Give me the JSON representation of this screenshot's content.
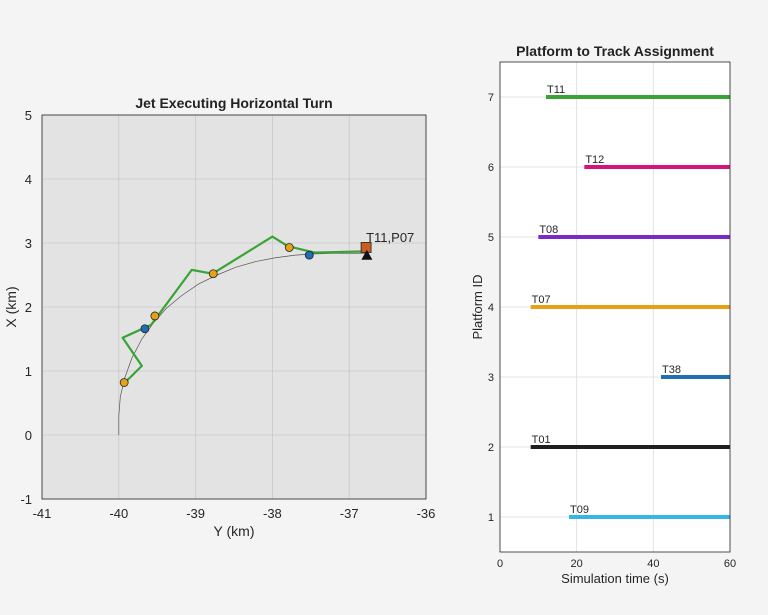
{
  "chart_data": [
    {
      "type": "line",
      "title": "Jet Executing Horizontal Turn",
      "xlabel": "Y (km)",
      "ylabel": "X (km)",
      "xlim": [
        -41,
        -36
      ],
      "ylim": [
        -1,
        5
      ],
      "x_ticks": [
        "-41",
        "-40",
        "-39",
        "-38",
        "-37",
        "-36"
      ],
      "y_ticks": [
        "-1",
        "0",
        "1",
        "2",
        "3",
        "4",
        "5"
      ],
      "grid": true,
      "background_color": "#e3e3e3",
      "annotations": [
        {
          "text": "T11,P07",
          "x": -36.78,
          "y": 3.0
        }
      ],
      "series": [
        {
          "role": "truth trajectory",
          "color": "#555555",
          "x": [
            -40.0,
            -40.0,
            -39.98,
            -39.92,
            -39.83,
            -39.7,
            -39.55,
            -39.38,
            -39.18,
            -38.96,
            -38.72,
            -38.48,
            -38.22,
            -37.96,
            -37.7,
            -37.45,
            -37.2,
            -36.95,
            -36.78
          ],
          "y": [
            0.0,
            0.3,
            0.6,
            0.9,
            1.2,
            1.5,
            1.75,
            1.98,
            2.18,
            2.36,
            2.5,
            2.62,
            2.71,
            2.77,
            2.81,
            2.83,
            2.84,
            2.84,
            2.84
          ]
        },
        {
          "role": "track estimate",
          "color": "#3aa335",
          "x": [
            -39.92,
            -39.7,
            -39.95,
            -39.58,
            -39.05,
            -38.78,
            -38.0,
            -37.8,
            -37.45,
            -36.78
          ],
          "y": [
            0.82,
            1.08,
            1.52,
            1.72,
            2.58,
            2.52,
            3.1,
            2.95,
            2.85,
            2.87
          ]
        }
      ],
      "detections": [
        {
          "x": -39.93,
          "y": 0.82,
          "color": "#e6a117"
        },
        {
          "x": -39.66,
          "y": 1.66,
          "color": "#1f6fb5"
        },
        {
          "x": -39.53,
          "y": 1.86,
          "color": "#e6a117"
        },
        {
          "x": -38.77,
          "y": 2.52,
          "color": "#e6a117"
        },
        {
          "x": -37.78,
          "y": 2.93,
          "color": "#e6a117"
        },
        {
          "x": -37.52,
          "y": 2.81,
          "color": "#1f6fb5"
        }
      ],
      "markers": [
        {
          "shape": "square",
          "x": -36.78,
          "y": 2.93,
          "color": "#c85f1e"
        },
        {
          "shape": "triangle",
          "x": -36.77,
          "y": 2.8,
          "color": "#111111"
        }
      ]
    },
    {
      "type": "line",
      "title": "Platform to Track Assignment",
      "xlabel": "Simulation time (s)",
      "ylabel": "Platform ID",
      "xlim": [
        0,
        60
      ],
      "ylim": [
        0.5,
        7.5
      ],
      "x_ticks": [
        "0",
        "20",
        "40",
        "60"
      ],
      "y_ticks": [
        "1",
        "2",
        "3",
        "4",
        "5",
        "6",
        "7"
      ],
      "grid": true,
      "background_color": "#ffffff",
      "series": [
        {
          "name": "T09",
          "platform": 1,
          "x": [
            18,
            60
          ],
          "color": "#36b6e8"
        },
        {
          "name": "T01",
          "platform": 2,
          "x": [
            8,
            60
          ],
          "color": "#1f1f1f"
        },
        {
          "name": "T38",
          "platform": 3,
          "x": [
            42,
            60
          ],
          "color": "#1f6fb5"
        },
        {
          "name": "T07",
          "platform": 4,
          "x": [
            8,
            60
          ],
          "color": "#e6a117"
        },
        {
          "name": "T08",
          "platform": 5,
          "x": [
            10,
            60
          ],
          "color": "#7a2bc7"
        },
        {
          "name": "T12",
          "platform": 6,
          "x": [
            22,
            60
          ],
          "color": "#d6137a"
        },
        {
          "name": "T11",
          "platform": 7,
          "x": [
            12,
            60
          ],
          "color": "#3aa335"
        }
      ]
    }
  ]
}
